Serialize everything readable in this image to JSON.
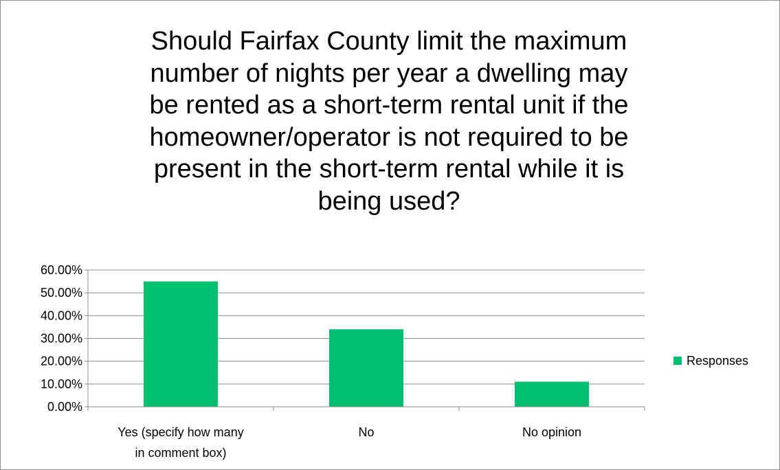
{
  "chart_data": {
    "type": "bar",
    "title_lines": [
      "Should Fairfax County limit the maximum",
      "number of nights per year a dwelling may",
      "be rented as a short-term rental unit if the",
      "homeowner/operator is not required to be",
      "present in the short-term rental while it is",
      "being used?"
    ],
    "categories": [
      [
        "Yes (specify how many",
        "in comment box)"
      ],
      [
        "No"
      ],
      [
        "No opinion"
      ]
    ],
    "series": [
      {
        "name": "Responses",
        "color": "#00BF6F",
        "values": [
          0.55,
          0.34,
          0.11
        ]
      }
    ],
    "ylim": [
      0,
      0.6
    ],
    "yticks": [
      "0.00%",
      "10.00%",
      "20.00%",
      "30.00%",
      "40.00%",
      "50.00%",
      "60.00%"
    ],
    "grid": true,
    "legend_position": "right"
  }
}
